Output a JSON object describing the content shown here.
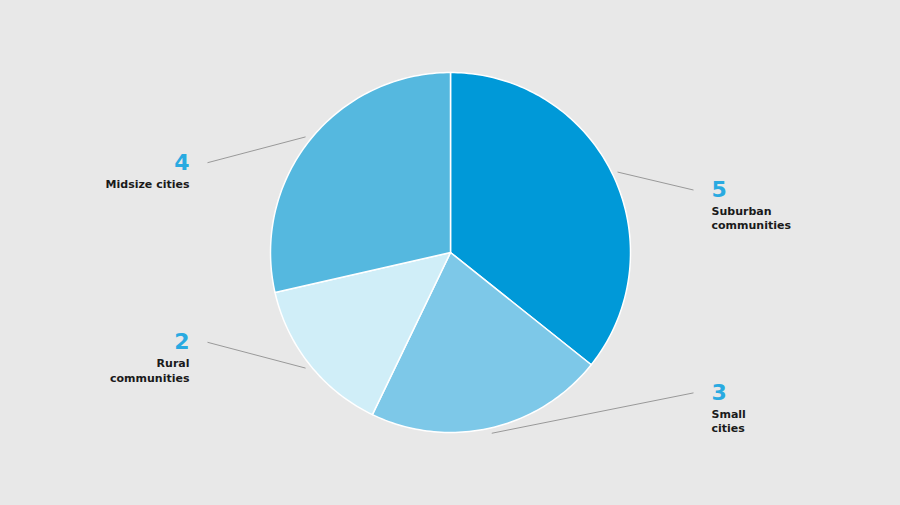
{
  "chart_data": {
    "type": "pie",
    "categories": [
      "Suburban\ncommunities",
      "Small\ncities",
      "Rural\ncommunities",
      "Midsize cities"
    ],
    "values": [
      5,
      3,
      2,
      4
    ],
    "colors": [
      "#0099D8",
      "#7DC8E8",
      "#D0EEF8",
      "#55B8DF"
    ],
    "data_labels": true
  }
}
